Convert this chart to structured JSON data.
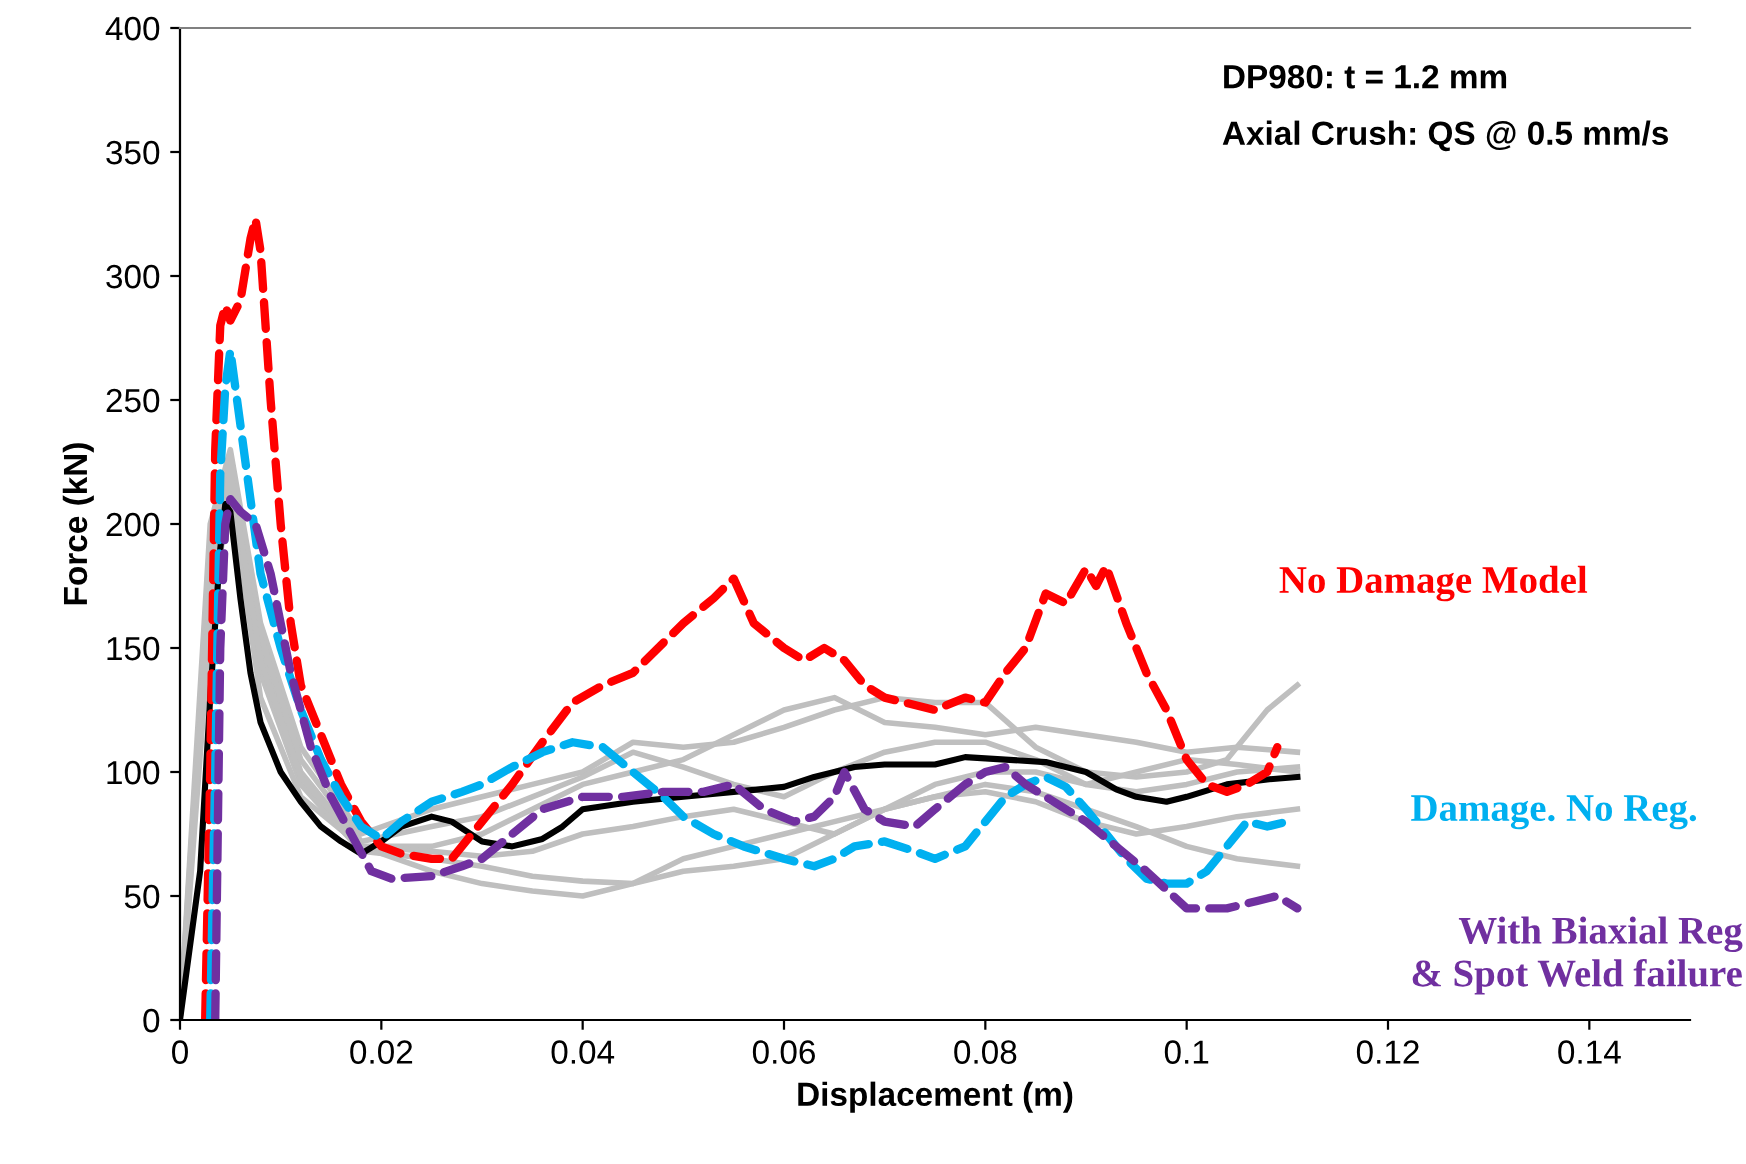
{
  "chart_data": {
    "type": "line",
    "xlabel": "Displacement (m)",
    "ylabel": "Force (kN)",
    "xlim": [
      0,
      0.15
    ],
    "ylim": [
      0,
      400
    ],
    "xticks": [
      0,
      0.02,
      0.04,
      0.06,
      0.08,
      0.1,
      0.12,
      0.14
    ],
    "yticks": [
      0,
      50,
      100,
      150,
      200,
      250,
      300,
      350,
      400
    ],
    "grid": false,
    "legend": false,
    "annotations": [
      "DP980: t = 1.2 mm",
      "Axial Crush: QS @ 0.5 mm/s"
    ],
    "series": [
      {
        "color": "#bfbfbf",
        "line_style": "solid",
        "x": [
          0,
          0.003,
          0.005,
          0.008,
          0.012,
          0.018,
          0.025,
          0.03,
          0.035,
          0.04,
          0.045,
          0.05,
          0.055,
          0.06,
          0.065,
          0.07,
          0.075,
          0.08,
          0.085,
          0.09,
          0.095,
          0.1,
          0.104,
          0.108,
          0.111
        ],
        "values": [
          0,
          200,
          230,
          160,
          110,
          75,
          85,
          90,
          95,
          100,
          112,
          110,
          112,
          118,
          125,
          130,
          128,
          128,
          110,
          100,
          98,
          100,
          105,
          125,
          135
        ]
      },
      {
        "color": "#bfbfbf",
        "line_style": "solid",
        "x": [
          0,
          0.003,
          0.005,
          0.008,
          0.012,
          0.018,
          0.025,
          0.03,
          0.035,
          0.04,
          0.045,
          0.05,
          0.055,
          0.06,
          0.065,
          0.07,
          0.075,
          0.08,
          0.085,
          0.09,
          0.095,
          0.1,
          0.105,
          0.111
        ],
        "values": [
          0,
          180,
          225,
          150,
          100,
          70,
          70,
          75,
          85,
          95,
          100,
          105,
          115,
          125,
          130,
          120,
          118,
          115,
          118,
          115,
          112,
          108,
          110,
          108
        ]
      },
      {
        "color": "#bfbfbf",
        "line_style": "solid",
        "x": [
          0,
          0.003,
          0.005,
          0.008,
          0.012,
          0.018,
          0.025,
          0.03,
          0.035,
          0.04,
          0.045,
          0.05,
          0.055,
          0.06,
          0.065,
          0.07,
          0.075,
          0.08,
          0.085,
          0.09,
          0.095,
          0.1,
          0.105,
          0.111
        ],
        "values": [
          0,
          170,
          220,
          140,
          95,
          68,
          65,
          62,
          58,
          56,
          55,
          60,
          62,
          65,
          75,
          85,
          90,
          95,
          92,
          85,
          78,
          70,
          65,
          62
        ]
      },
      {
        "color": "#bfbfbf",
        "line_style": "solid",
        "x": [
          0,
          0.003,
          0.005,
          0.008,
          0.012,
          0.018,
          0.025,
          0.03,
          0.035,
          0.04,
          0.045,
          0.05,
          0.055,
          0.06,
          0.065,
          0.07,
          0.075,
          0.08,
          0.085,
          0.09,
          0.095,
          0.1,
          0.105,
          0.111
        ],
        "values": [
          0,
          160,
          215,
          130,
          90,
          70,
          60,
          55,
          52,
          50,
          55,
          65,
          70,
          75,
          80,
          85,
          90,
          92,
          88,
          80,
          75,
          78,
          82,
          85
        ]
      },
      {
        "color": "#bfbfbf",
        "line_style": "solid",
        "x": [
          0,
          0.003,
          0.005,
          0.008,
          0.012,
          0.018,
          0.025,
          0.03,
          0.035,
          0.04,
          0.045,
          0.05,
          0.055,
          0.06,
          0.065,
          0.07,
          0.075,
          0.08,
          0.085,
          0.09,
          0.095,
          0.1,
          0.105,
          0.111
        ],
        "values": [
          0,
          190,
          228,
          155,
          105,
          72,
          78,
          82,
          90,
          98,
          108,
          102,
          95,
          90,
          100,
          108,
          112,
          112,
          105,
          95,
          100,
          105,
          103,
          100
        ]
      },
      {
        "color": "#bfbfbf",
        "line_style": "solid",
        "x": [
          0,
          0.003,
          0.005,
          0.008,
          0.012,
          0.018,
          0.025,
          0.03,
          0.035,
          0.04,
          0.045,
          0.05,
          0.055,
          0.06,
          0.065,
          0.07,
          0.075,
          0.08,
          0.085,
          0.09,
          0.095,
          0.1,
          0.105,
          0.111
        ],
        "values": [
          0,
          175,
          222,
          145,
          98,
          70,
          68,
          66,
          68,
          75,
          78,
          82,
          85,
          80,
          75,
          85,
          95,
          100,
          100,
          95,
          92,
          95,
          100,
          102
        ]
      },
      {
        "color": "#000000",
        "line_style": "solid",
        "x": [
          0,
          0.002,
          0.003,
          0.004,
          0.0045,
          0.005,
          0.006,
          0.007,
          0.008,
          0.01,
          0.012,
          0.014,
          0.016,
          0.018,
          0.02,
          0.022,
          0.025,
          0.027,
          0.03,
          0.033,
          0.036,
          0.038,
          0.04,
          0.045,
          0.05,
          0.055,
          0.06,
          0.063,
          0.067,
          0.07,
          0.075,
          0.078,
          0.082,
          0.086,
          0.09,
          0.093,
          0.095,
          0.098,
          0.1,
          0.104,
          0.108,
          0.111
        ],
        "values": [
          0,
          60,
          130,
          190,
          208,
          205,
          170,
          140,
          120,
          100,
          88,
          78,
          72,
          67,
          72,
          78,
          82,
          80,
          72,
          70,
          73,
          78,
          85,
          88,
          90,
          92,
          94,
          98,
          102,
          103,
          103,
          106,
          105,
          104,
          100,
          93,
          90,
          88,
          90,
          95,
          97,
          98
        ]
      },
      {
        "name": "No Damage Model",
        "color": "#ff0000",
        "line_style": "dashed",
        "x": [
          0.0025,
          0.003,
          0.0035,
          0.004,
          0.0045,
          0.005,
          0.006,
          0.007,
          0.0075,
          0.008,
          0.009,
          0.01,
          0.011,
          0.012,
          0.014,
          0.016,
          0.018,
          0.02,
          0.022,
          0.025,
          0.027,
          0.03,
          0.033,
          0.036,
          0.039,
          0.042,
          0.045,
          0.048,
          0.05,
          0.053,
          0.055,
          0.057,
          0.06,
          0.062,
          0.064,
          0.066,
          0.068,
          0.07,
          0.072,
          0.075,
          0.078,
          0.08,
          0.082,
          0.084,
          0.086,
          0.088,
          0.09,
          0.091,
          0.092,
          0.094,
          0.096,
          0.098,
          0.1,
          0.102,
          0.104,
          0.106,
          0.108,
          0.109
        ],
        "values": [
          0,
          100,
          230,
          280,
          288,
          282,
          290,
          315,
          323,
          310,
          250,
          200,
          160,
          135,
          115,
          95,
          80,
          70,
          67,
          65,
          65,
          80,
          95,
          112,
          128,
          135,
          140,
          152,
          160,
          170,
          178,
          160,
          150,
          145,
          150,
          145,
          135,
          130,
          128,
          125,
          130,
          128,
          140,
          150,
          172,
          168,
          182,
          175,
          183,
          160,
          140,
          125,
          105,
          95,
          92,
          95,
          100,
          110
        ]
      },
      {
        "name": "Damage. No Reg.",
        "color": "#00b0f0",
        "line_style": "dashed",
        "x": [
          0.003,
          0.0035,
          0.004,
          0.0045,
          0.005,
          0.0055,
          0.006,
          0.007,
          0.008,
          0.01,
          0.012,
          0.014,
          0.016,
          0.018,
          0.02,
          0.022,
          0.025,
          0.028,
          0.03,
          0.033,
          0.036,
          0.039,
          0.042,
          0.045,
          0.048,
          0.05,
          0.053,
          0.056,
          0.06,
          0.063,
          0.065,
          0.067,
          0.07,
          0.073,
          0.075,
          0.078,
          0.08,
          0.082,
          0.084,
          0.086,
          0.088,
          0.09,
          0.092,
          0.094,
          0.096,
          0.098,
          0.1,
          0.102,
          0.104,
          0.106,
          0.108,
          0.11
        ],
        "values": [
          0,
          100,
          220,
          255,
          270,
          255,
          240,
          210,
          180,
          150,
          125,
          105,
          90,
          78,
          73,
          80,
          88,
          92,
          95,
          102,
          108,
          112,
          110,
          100,
          90,
          82,
          75,
          70,
          65,
          62,
          65,
          70,
          72,
          68,
          65,
          70,
          80,
          90,
          95,
          98,
          94,
          85,
          75,
          65,
          57,
          55,
          55,
          60,
          70,
          80,
          78,
          80
        ]
      },
      {
        "name": "With Biaxial Reg\n& Spot Weld failure",
        "color": "#7030a0",
        "line_style": "dashed",
        "x": [
          0.0035,
          0.004,
          0.0045,
          0.005,
          0.006,
          0.0075,
          0.009,
          0.011,
          0.013,
          0.015,
          0.017,
          0.019,
          0.021,
          0.025,
          0.028,
          0.03,
          0.033,
          0.036,
          0.04,
          0.044,
          0.048,
          0.052,
          0.055,
          0.058,
          0.061,
          0.063,
          0.065,
          0.066,
          0.068,
          0.07,
          0.073,
          0.075,
          0.078,
          0.08,
          0.082,
          0.084,
          0.086,
          0.088,
          0.09,
          0.093,
          0.096,
          0.1,
          0.104,
          0.107,
          0.109,
          0.111
        ],
        "values": [
          0,
          150,
          200,
          210,
          205,
          200,
          180,
          140,
          110,
          90,
          75,
          60,
          57,
          58,
          62,
          65,
          75,
          85,
          90,
          90,
          92,
          92,
          95,
          85,
          80,
          82,
          90,
          100,
          85,
          80,
          78,
          85,
          95,
          100,
          102,
          95,
          90,
          85,
          80,
          70,
          60,
          45,
          45,
          48,
          50,
          45
        ]
      }
    ]
  }
}
